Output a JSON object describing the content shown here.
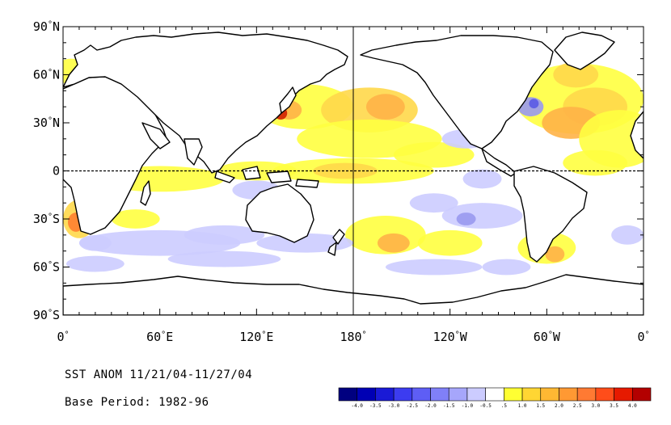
{
  "map": {
    "lat_labels": [
      {
        "value": "90",
        "hemi": "N"
      },
      {
        "value": "60",
        "hemi": "N"
      },
      {
        "value": "30",
        "hemi": "N"
      },
      {
        "value": "0",
        "hemi": ""
      },
      {
        "value": "30",
        "hemi": "S"
      },
      {
        "value": "60",
        "hemi": "S"
      },
      {
        "value": "90",
        "hemi": "S"
      }
    ],
    "lon_labels": [
      {
        "value": "0",
        "hemi": ""
      },
      {
        "value": "60",
        "hemi": "E"
      },
      {
        "value": "120",
        "hemi": "E"
      },
      {
        "value": "180",
        "hemi": ""
      },
      {
        "value": "120",
        "hemi": "W"
      },
      {
        "value": "60",
        "hemi": "W"
      },
      {
        "value": "0",
        "hemi": ""
      }
    ],
    "degree_symbol": "°",
    "lon_range": [
      0,
      360
    ],
    "lat_range": [
      -90,
      90
    ],
    "equator_line": "dashed",
    "dateline_marker": 180
  },
  "caption": {
    "title": "SST ANOM 11/21/04-11/27/04",
    "base_period": "Base Period: 1982-96"
  },
  "colorbar": {
    "ticks": [
      "-4.0",
      "-3.5",
      "-3.0",
      "-2.5",
      "-2.0",
      "-1.5",
      "-1.0",
      "-0.5",
      ".5",
      "1.0",
      "1.5",
      "2.0",
      "2.5",
      "3.0",
      "3.5",
      "4.0"
    ],
    "colors": [
      "#000080",
      "#0000b4",
      "#1a1ad6",
      "#3c3cf0",
      "#5e5ef5",
      "#8080f8",
      "#a6a6fb",
      "#ccccff",
      "#ffffff",
      "#ffff33",
      "#ffd633",
      "#ffb833",
      "#ff9933",
      "#ff7a33",
      "#ff4d1a",
      "#e61a00",
      "#b30000"
    ]
  },
  "anomaly_colors": {
    "warm_light": "#ffff40",
    "warm_mid": "#ffd84a",
    "warm_strong": "#ffb347",
    "warm_hot": "#ff8030",
    "warm_extreme": "#d22000",
    "cool_light": "#ccccff",
    "cool_mid": "#9999f0",
    "cool_strong": "#5a5ae6",
    "land": "#ffffff",
    "coastline": "#000000"
  }
}
